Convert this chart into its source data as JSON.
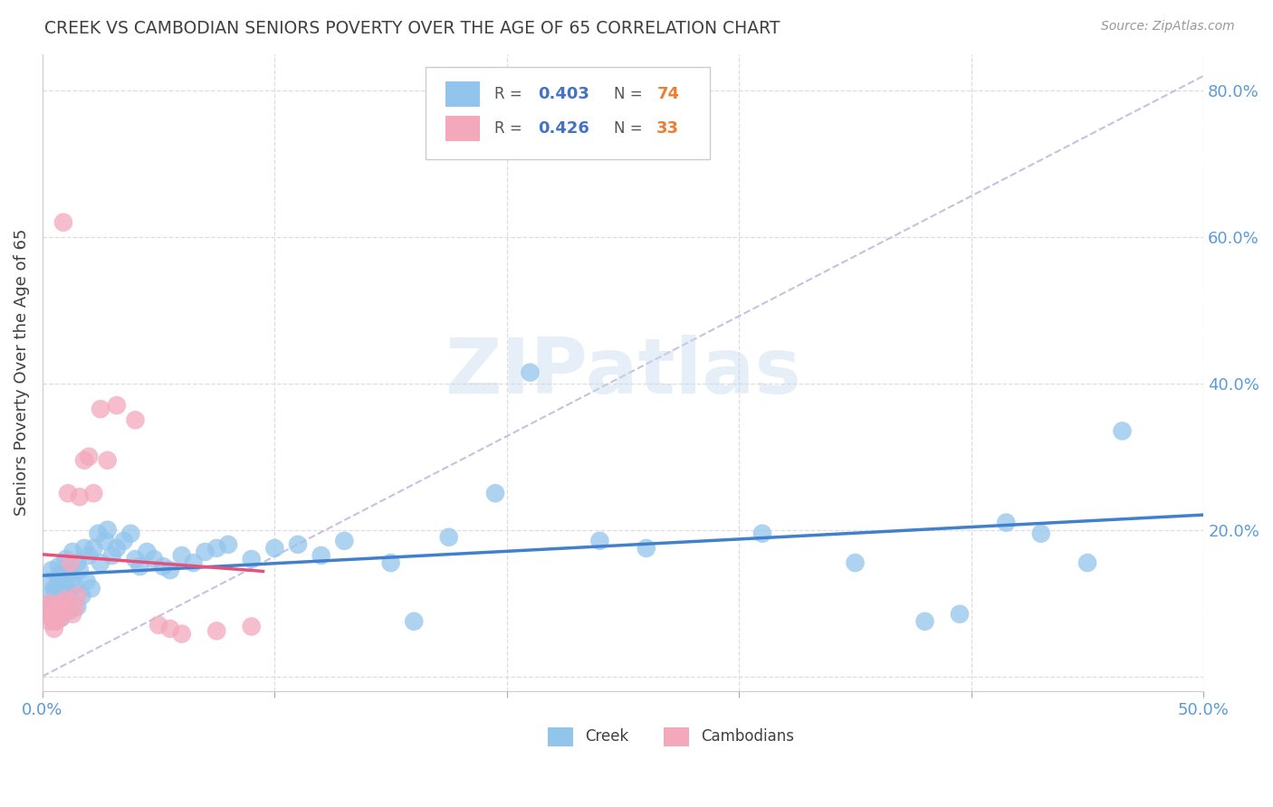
{
  "title": "CREEK VS CAMBODIAN SENIORS POVERTY OVER THE AGE OF 65 CORRELATION CHART",
  "source": "Source: ZipAtlas.com",
  "ylabel": "Seniors Poverty Over the Age of 65",
  "xlim": [
    0,
    0.5
  ],
  "ylim": [
    -0.02,
    0.85
  ],
  "xtick_vals": [
    0.0,
    0.1,
    0.2,
    0.3,
    0.4,
    0.5
  ],
  "xticklabels_show": [
    "0.0%",
    "",
    "",
    "",
    "",
    "50.0%"
  ],
  "ytick_vals": [
    0.0,
    0.2,
    0.4,
    0.6,
    0.8
  ],
  "yticklabels": [
    "",
    "20.0%",
    "40.0%",
    "60.0%",
    "80.0%"
  ],
  "creek_R": 0.403,
  "creek_N": 74,
  "cambodian_R": 0.426,
  "cambodian_N": 33,
  "blue_color": "#92C5EC",
  "pink_color": "#F4A8BC",
  "blue_line_color": "#4080CC",
  "pink_line_color": "#E8507A",
  "diag_line_color": "#C8C0E0",
  "title_color": "#404040",
  "ylabel_color": "#404040",
  "tick_color": "#5B9BD5",
  "legend_R_color": "#4472C4",
  "legend_N_color": "#ED7D31",
  "background_color": "#FFFFFF",
  "watermark": "ZIPatlas",
  "figsize": [
    14.06,
    8.92
  ],
  "dpi": 100
}
